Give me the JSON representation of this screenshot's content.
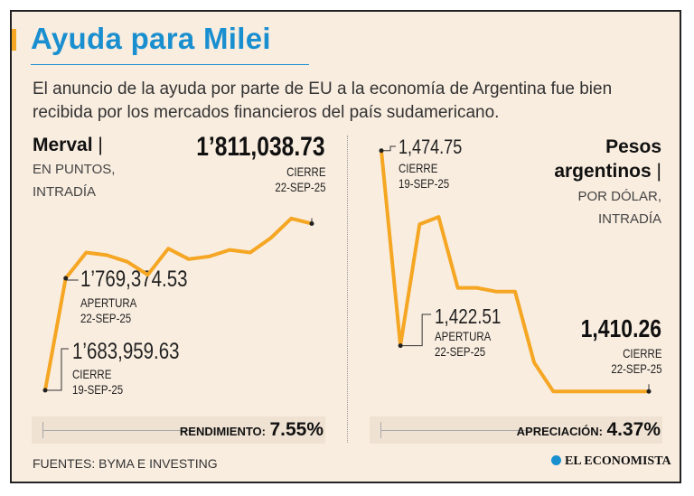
{
  "title": "Ayuda para Milei",
  "subtitle": "El anuncio de la ayuda por parte de EU a la economía de Argentina fue bien recibida por los mercados financieros del país sudamericano.",
  "source": "FUENTES: BYMA E INVESTING",
  "logo": "EL ECONOMISTA",
  "colors": {
    "accent": "#f5a623",
    "line": "#f5a623",
    "title": "#1a8fd0",
    "background": "#f9eddf"
  },
  "chart_data": [
    {
      "type": "line",
      "title": "Merval",
      "separator": "|",
      "unit_line1": "EN PUNTOS,",
      "unit_line2": "INTRADÍA",
      "ylim": [
        1675000,
        1830000
      ],
      "values": [
        1683959.63,
        1769374.53,
        1789000,
        1787000,
        1782000,
        1772000,
        1792000,
        1784000,
        1786000,
        1791000,
        1789000,
        1800000,
        1815000,
        1811038.73
      ],
      "close": {
        "value": "1’811,038.73",
        "label": "CIERRE",
        "date": "22-SEP-25"
      },
      "open": {
        "value": "1’769,374.53",
        "label": "APERTURA",
        "date": "22-SEP-25"
      },
      "prev_close": {
        "value": "1’683,959.63",
        "label": "CIERRE",
        "date": "19-SEP-25"
      },
      "performance_label": "RENDIMIENTO:",
      "performance_value": "7.55%"
    },
    {
      "type": "line",
      "title_line1": "Pesos",
      "title_line2": "argentinos",
      "separator": "|",
      "unit_line1": "POR DÓLAR,",
      "unit_line2": "INTRADÍA",
      "ylim": [
        1405,
        1480
      ],
      "values": [
        1474.75,
        1422.51,
        1455,
        1457,
        1438,
        1438,
        1437,
        1437,
        1418,
        1410.26,
        1410.26,
        1410.26,
        1410.26,
        1410.26,
        1410.26
      ],
      "prev_close": {
        "value": "1,474.75",
        "label": "CIERRE",
        "date": "19-SEP-25"
      },
      "open": {
        "value": "1,422.51",
        "label": "APERTURA",
        "date": "22-SEP-25"
      },
      "close": {
        "value": "1,410.26",
        "label": "CIERRE",
        "date": "22-SEP-25"
      },
      "performance_label": "APRECIACIÓN:",
      "performance_value": "4.37%"
    }
  ]
}
